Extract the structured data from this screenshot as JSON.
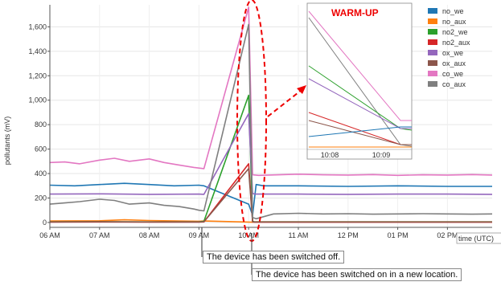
{
  "chart_data": {
    "type": "line",
    "ylabel": "pollutants (mV)",
    "xlabel": "time (UTC)",
    "x_ticks": [
      "06 AM",
      "07 AM",
      "08 AM",
      "09 AM",
      "10 AM",
      "11 AM",
      "12 PM",
      "01 PM",
      "02 PM"
    ],
    "y_ticks": [
      0,
      200,
      400,
      600,
      800,
      1000,
      1200,
      1400,
      1600
    ],
    "y_tick_labels": [
      "0",
      "200",
      "400",
      "600",
      "800",
      "1,000",
      "1,200",
      "1,400",
      "1,600"
    ],
    "ylim": [
      -40,
      1780
    ],
    "xlim": [
      6.0,
      14.9
    ],
    "grid": true,
    "legend_position": "top-right",
    "series": [
      {
        "name": "no_we",
        "color": "#1f77b4",
        "x": [
          6.0,
          6.5,
          7.0,
          7.5,
          8.0,
          8.5,
          9.0,
          9.1,
          10.0,
          10.08,
          10.15,
          10.3,
          11.0,
          12.0,
          13.0,
          14.0,
          14.9
        ],
        "y": [
          305,
          300,
          310,
          320,
          310,
          300,
          305,
          300,
          150,
          60,
          310,
          300,
          300,
          295,
          300,
          295,
          295
        ]
      },
      {
        "name": "no_aux",
        "color": "#ff7f0e",
        "x": [
          6.0,
          7.0,
          7.5,
          8.0,
          9.0,
          9.1,
          10.08,
          10.15,
          11.0,
          12.0,
          13.0,
          14.0,
          14.9
        ],
        "y": [
          12,
          14,
          22,
          16,
          10,
          12,
          2,
          5,
          5,
          5,
          5,
          5,
          5
        ]
      },
      {
        "name": "no2_we",
        "color": "#2ca02c",
        "x": [
          6.0,
          7.0,
          8.0,
          9.0,
          9.1,
          10.0,
          10.08,
          10.12,
          11.0,
          12.0,
          13.0,
          14.0,
          14.9
        ],
        "y": [
          5,
          6,
          5,
          5,
          10,
          1040,
          10,
          5,
          5,
          5,
          5,
          5,
          5
        ]
      },
      {
        "name": "no2_aux",
        "color": "#d62728",
        "x": [
          6.0,
          7.0,
          8.0,
          9.0,
          9.1,
          10.0,
          10.08,
          10.12,
          11.0,
          12.0,
          13.0,
          14.0,
          14.9
        ],
        "y": [
          3,
          4,
          3,
          3,
          5,
          480,
          5,
          2,
          2,
          2,
          2,
          2,
          2
        ]
      },
      {
        "name": "ox_we",
        "color": "#9467bd",
        "x": [
          6.0,
          7.0,
          8.0,
          9.0,
          9.1,
          10.0,
          10.08,
          10.15,
          11.0,
          12.0,
          13.0,
          14.0,
          14.9
        ],
        "y": [
          232,
          234,
          230,
          232,
          230,
          890,
          235,
          232,
          232,
          230,
          232,
          232,
          230
        ]
      },
      {
        "name": "ox_aux",
        "color": "#8c564b",
        "x": [
          6.0,
          7.0,
          8.0,
          9.0,
          9.1,
          10.0,
          10.08,
          10.12,
          11.0,
          12.0,
          13.0,
          14.0,
          14.9
        ],
        "y": [
          4,
          6,
          4,
          4,
          6,
          440,
          6,
          4,
          4,
          4,
          4,
          4,
          4
        ]
      },
      {
        "name": "co_we",
        "color": "#e377c2",
        "x": [
          6.0,
          6.3,
          6.6,
          7.0,
          7.3,
          7.6,
          8.0,
          8.3,
          8.6,
          8.9,
          9.1,
          10.0,
          10.08,
          10.2,
          11.0,
          11.5,
          12.0,
          12.5,
          13.0,
          13.5,
          14.0,
          14.5,
          14.9
        ],
        "y": [
          490,
          495,
          480,
          510,
          525,
          500,
          520,
          490,
          470,
          450,
          440,
          1760,
          390,
          385,
          395,
          390,
          388,
          392,
          385,
          390,
          388,
          392,
          388
        ]
      },
      {
        "name": "co_aux",
        "color": "#7f7f7f",
        "x": [
          6.0,
          6.3,
          6.6,
          7.0,
          7.3,
          7.6,
          8.0,
          8.3,
          8.6,
          8.9,
          9.0,
          9.1,
          10.0,
          10.08,
          10.15,
          10.5,
          11.0,
          11.5,
          12.0,
          12.5,
          13.0,
          13.5,
          14.0,
          14.5,
          14.9
        ],
        "y": [
          150,
          160,
          170,
          190,
          180,
          150,
          160,
          140,
          130,
          110,
          100,
          95,
          1620,
          40,
          30,
          70,
          75,
          70,
          72,
          68,
          70,
          72,
          70,
          68,
          70
        ]
      }
    ],
    "inset": {
      "title": "WARM-UP",
      "x_ticks": [
        "10:08",
        "10:09"
      ]
    },
    "annotations": [
      "The device has been switched off.",
      "The device has been switched on in a new location."
    ]
  }
}
